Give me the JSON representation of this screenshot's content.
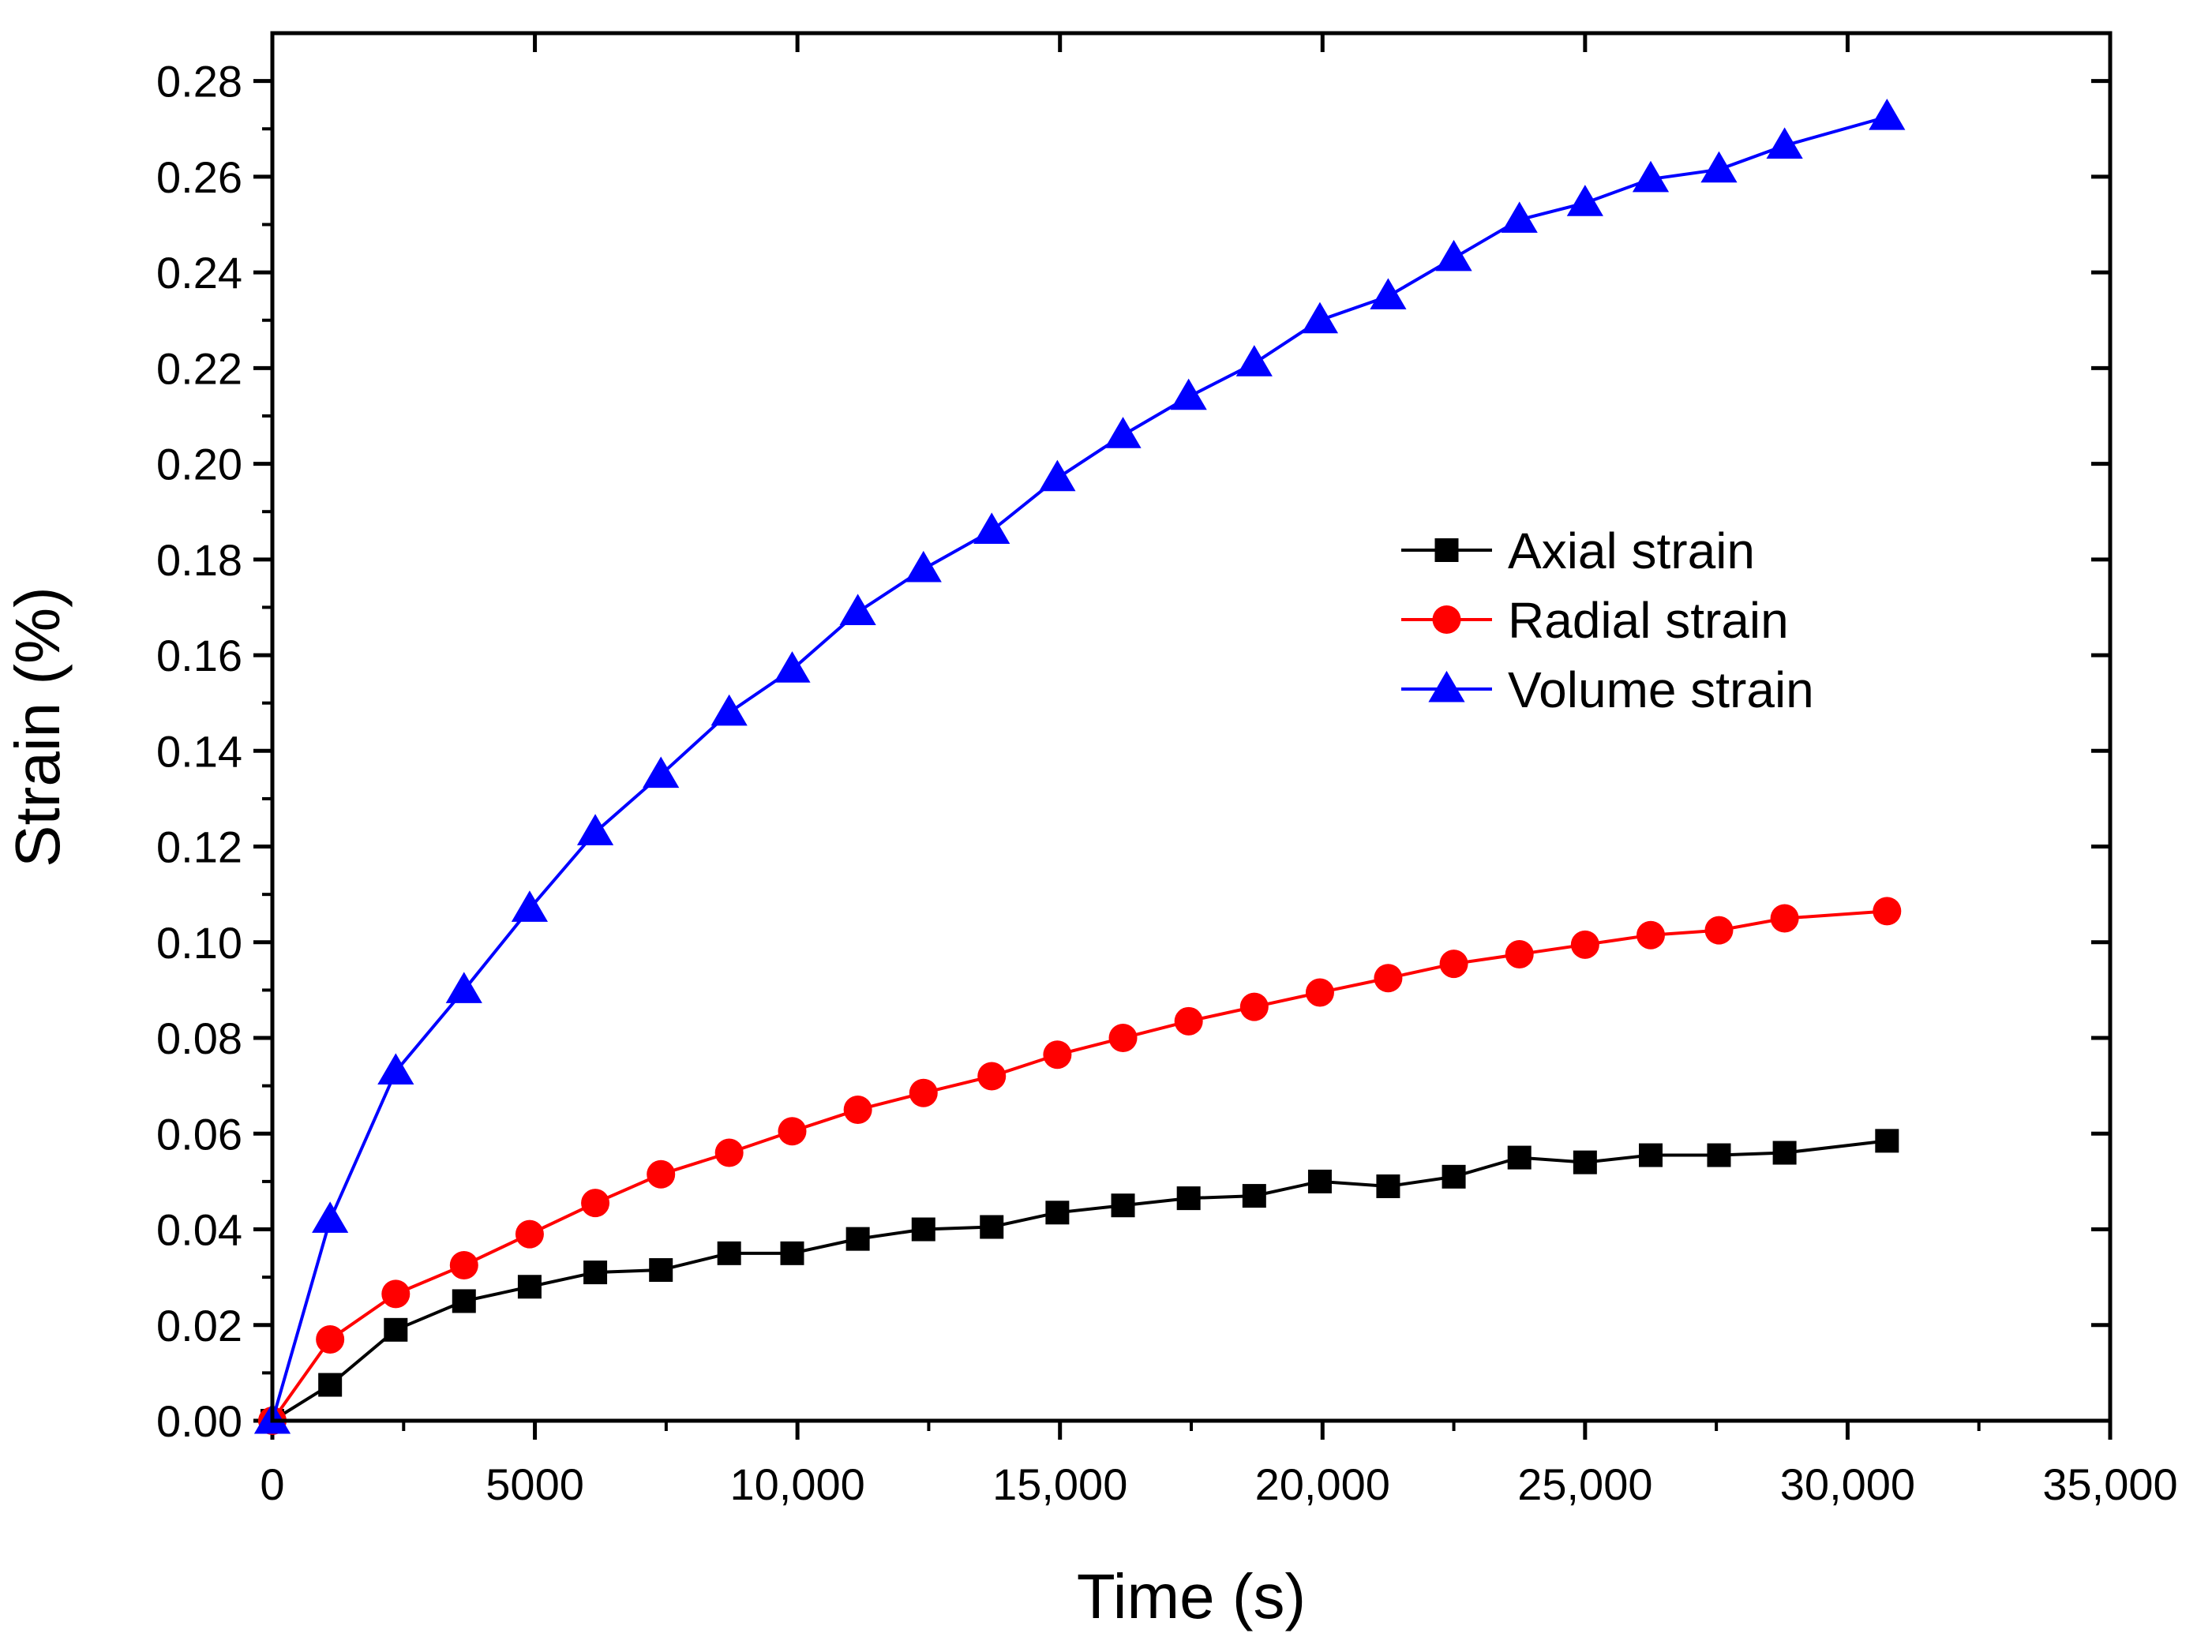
{
  "chart_data": {
    "type": "line",
    "xlabel": "Time (s)",
    "ylabel": "Strain (%)",
    "xlim": [
      0,
      35000
    ],
    "ylim": [
      0,
      0.29
    ],
    "x_ticks": [
      0,
      5000,
      10000,
      15000,
      20000,
      25000,
      30000,
      35000
    ],
    "x_tick_labels": [
      "0",
      "5000",
      "10,000",
      "15,000",
      "20,000",
      "25,000",
      "30,000",
      "35,000"
    ],
    "y_ticks": [
      0.0,
      0.02,
      0.04,
      0.06,
      0.08,
      0.1,
      0.12,
      0.14,
      0.16,
      0.18,
      0.2,
      0.22,
      0.24,
      0.26,
      0.28
    ],
    "y_tick_labels": [
      "0.00",
      "0.02",
      "0.04",
      "0.06",
      "0.08",
      "0.10",
      "0.12",
      "0.14",
      "0.16",
      "0.18",
      "0.20",
      "0.22",
      "0.24",
      "0.26",
      "0.28"
    ],
    "grid": false,
    "legend_position": "center-right",
    "x": [
      0,
      1100,
      2350,
      3650,
      4900,
      6150,
      7400,
      8700,
      9900,
      11150,
      12400,
      13700,
      14950,
      16200,
      17450,
      18700,
      19950,
      21250,
      22500,
      23750,
      25000,
      26250,
      27550,
      28800,
      30750
    ],
    "series": [
      {
        "name": "Axial strain",
        "color": "#000000",
        "marker": "square",
        "values": [
          0.0,
          0.0075,
          0.019,
          0.025,
          0.028,
          0.031,
          0.0315,
          0.035,
          0.035,
          0.038,
          0.04,
          0.0405,
          0.0435,
          0.045,
          0.0465,
          0.047,
          0.05,
          0.049,
          0.051,
          0.055,
          0.054,
          0.0555,
          0.0555,
          0.056,
          0.0585
        ]
      },
      {
        "name": "Radial strain",
        "color": "#ff0000",
        "marker": "circle",
        "values": [
          0.0,
          0.017,
          0.0265,
          0.0325,
          0.039,
          0.0455,
          0.0515,
          0.056,
          0.0605,
          0.065,
          0.0685,
          0.072,
          0.0765,
          0.08,
          0.0835,
          0.0865,
          0.0895,
          0.0925,
          0.0955,
          0.0975,
          0.0995,
          0.1015,
          0.1025,
          0.105,
          0.1065
        ]
      },
      {
        "name": "Volume strain",
        "color": "#0000ff",
        "marker": "triangle",
        "values": [
          0.0,
          0.042,
          0.073,
          0.09,
          0.107,
          0.123,
          0.135,
          0.148,
          0.157,
          0.169,
          0.178,
          0.186,
          0.197,
          0.206,
          0.214,
          0.221,
          0.23,
          0.235,
          0.243,
          0.251,
          0.2545,
          0.2595,
          0.2615,
          0.2665,
          0.2725
        ]
      }
    ]
  }
}
